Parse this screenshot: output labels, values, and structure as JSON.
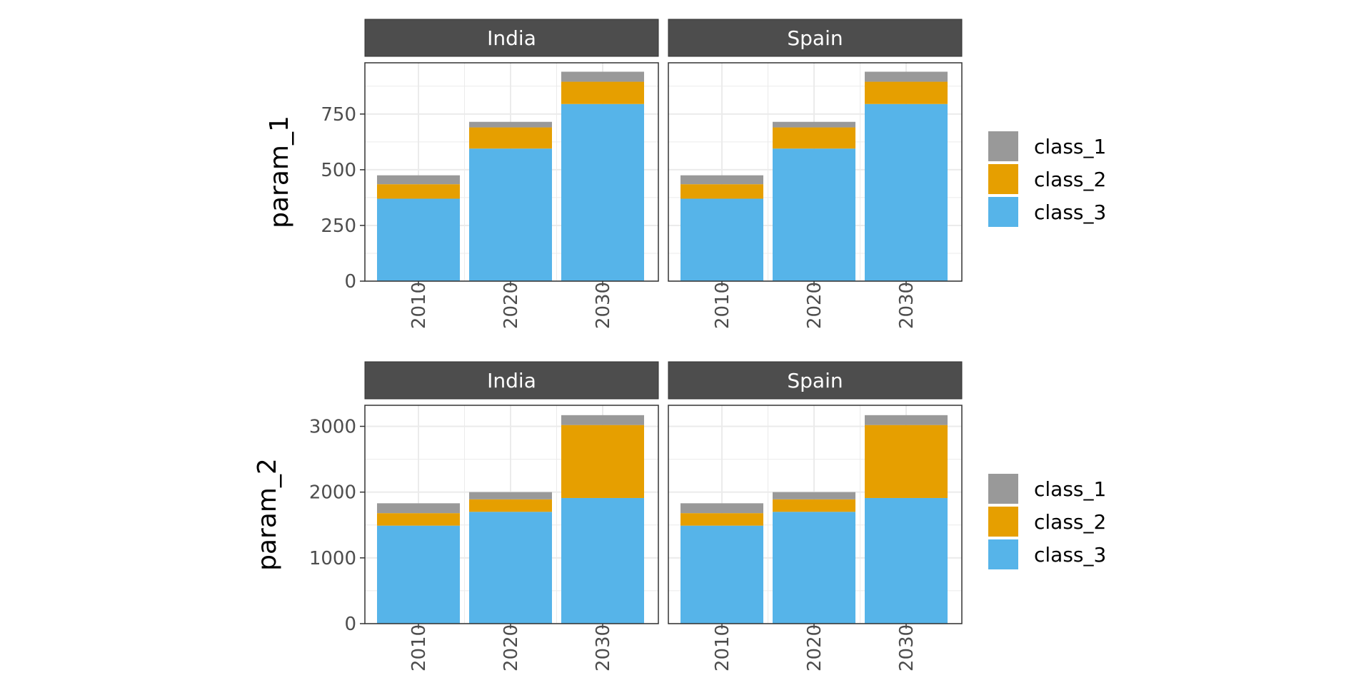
{
  "chart_data": {
    "type": "bar",
    "stacked": true,
    "facets": [
      "India",
      "Spain"
    ],
    "categories": [
      "2010",
      "2020",
      "2030"
    ],
    "legend_position": "right",
    "grid": true,
    "colors": {
      "class_1": "#999999",
      "class_2": "#E69F00",
      "class_3": "#56B4E9",
      "strip_background": "#4D4D4D",
      "grid": "#EBEBEB",
      "panel_border": "#333333"
    },
    "legend": [
      "class_1",
      "class_2",
      "class_3"
    ],
    "rows": [
      {
        "ylabel": "param_1",
        "ylim": [
          0,
          980
        ],
        "yticks": [
          0,
          250,
          500,
          750
        ],
        "ytick_labels": [
          "0",
          "250",
          "500",
          "750"
        ],
        "panels": [
          {
            "facet": "India",
            "series": [
              {
                "name": "class_3",
                "values": [
                  370,
                  595,
                  795
                ]
              },
              {
                "name": "class_2",
                "values": [
                  65,
                  95,
                  100
                ]
              },
              {
                "name": "class_1",
                "values": [
                  40,
                  25,
                  45
                ]
              }
            ]
          },
          {
            "facet": "Spain",
            "series": [
              {
                "name": "class_3",
                "values": [
                  370,
                  595,
                  795
                ]
              },
              {
                "name": "class_2",
                "values": [
                  65,
                  95,
                  100
                ]
              },
              {
                "name": "class_1",
                "values": [
                  40,
                  25,
                  45
                ]
              }
            ]
          }
        ]
      },
      {
        "ylabel": "param_2",
        "ylim": [
          0,
          3320
        ],
        "yticks": [
          0,
          1000,
          2000,
          3000
        ],
        "ytick_labels": [
          "0",
          "1000",
          "2000",
          "3000"
        ],
        "panels": [
          {
            "facet": "India",
            "series": [
              {
                "name": "class_3",
                "values": [
                  1490,
                  1700,
                  1910
                ]
              },
              {
                "name": "class_2",
                "values": [
                  190,
                  190,
                  1110
                ]
              },
              {
                "name": "class_1",
                "values": [
                  150,
                  110,
                  150
                ]
              }
            ]
          },
          {
            "facet": "Spain",
            "series": [
              {
                "name": "class_3",
                "values": [
                  1490,
                  1700,
                  1910
                ]
              },
              {
                "name": "class_2",
                "values": [
                  190,
                  190,
                  1110
                ]
              },
              {
                "name": "class_1",
                "values": [
                  150,
                  110,
                  150
                ]
              }
            ]
          }
        ]
      }
    ]
  }
}
